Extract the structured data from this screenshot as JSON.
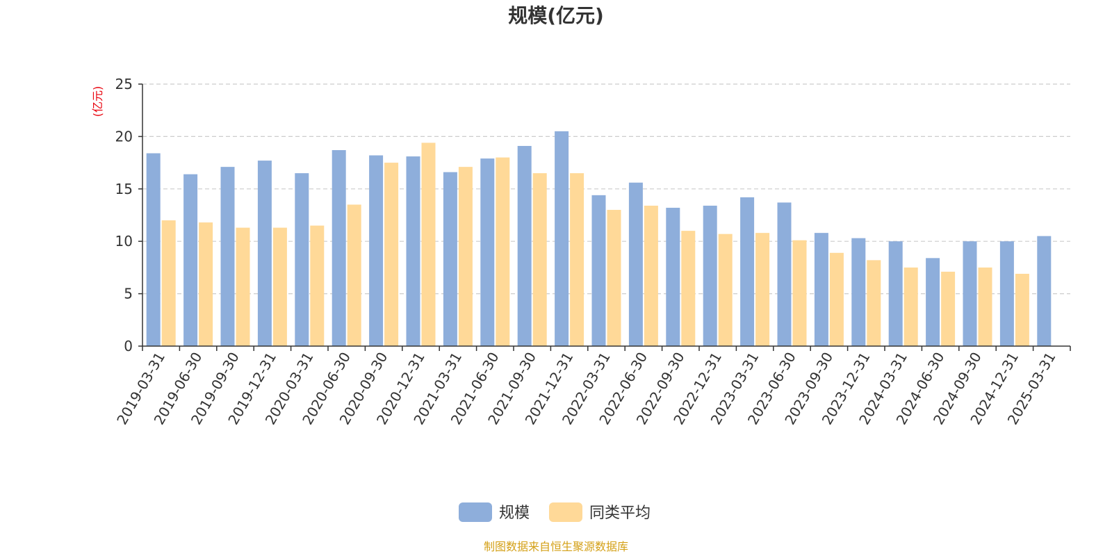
{
  "chart_data": {
    "type": "bar",
    "title": "规模(亿元)",
    "ylabel": "(亿元)",
    "xlabel": "",
    "ylim": [
      0,
      25
    ],
    "yticks": [
      0,
      5,
      10,
      15,
      20,
      25
    ],
    "grid": true,
    "legend_position": "bottom",
    "categories": [
      "2019-03-31",
      "2019-06-30",
      "2019-09-30",
      "2019-12-31",
      "2020-03-31",
      "2020-06-30",
      "2020-09-30",
      "2020-12-31",
      "2021-03-31",
      "2021-06-30",
      "2021-09-30",
      "2021-12-31",
      "2022-03-31",
      "2022-06-30",
      "2022-09-30",
      "2022-12-31",
      "2023-03-31",
      "2023-06-30",
      "2023-09-30",
      "2023-12-31",
      "2024-03-31",
      "2024-06-30",
      "2024-09-30",
      "2024-12-31",
      "2025-03-31"
    ],
    "series": [
      {
        "name": "规模",
        "color": "#8eaedb",
        "values": [
          18.4,
          16.4,
          17.1,
          17.7,
          16.5,
          18.7,
          18.2,
          18.1,
          16.6,
          17.9,
          19.1,
          20.5,
          14.4,
          15.6,
          13.2,
          13.4,
          14.2,
          13.7,
          10.8,
          10.3,
          10.0,
          8.4,
          10.0,
          10.0,
          10.5
        ]
      },
      {
        "name": "同类平均",
        "color": "#ffd998",
        "values": [
          12.0,
          11.8,
          11.3,
          11.3,
          11.5,
          13.5,
          17.5,
          19.4,
          17.1,
          18.0,
          16.5,
          16.5,
          13.0,
          13.4,
          11.0,
          10.7,
          10.8,
          10.1,
          8.9,
          8.2,
          7.5,
          7.1,
          7.5,
          6.9,
          null
        ]
      }
    ],
    "source": "制图数据来自恒生聚源数据库"
  }
}
